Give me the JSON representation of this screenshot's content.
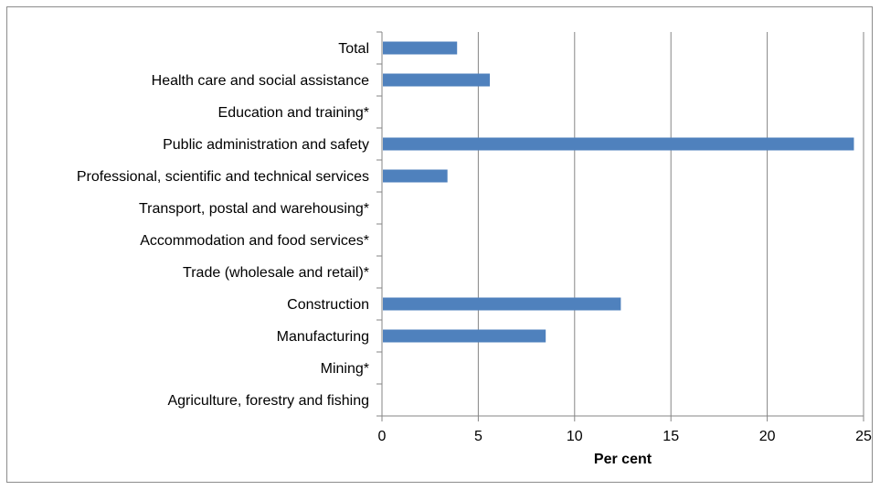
{
  "chart_data": {
    "type": "bar",
    "orientation": "horizontal",
    "title": "",
    "xlabel": "Per cent",
    "ylabel": "",
    "xlim": [
      0,
      25
    ],
    "xticks": [
      "0",
      "5",
      "10",
      "15",
      "20",
      "25"
    ],
    "grid": true,
    "legend": "none",
    "categories": [
      "Total",
      "Health care and social assistance",
      "Education and training*",
      "Public administration and safety",
      "Professional, scientific and technical services",
      "Transport, postal and warehousing*",
      "Accommodation and food services*",
      "Trade (wholesale and retail)*",
      "Construction",
      "Manufacturing",
      "Mining*",
      "Agriculture, forestry and fishing"
    ],
    "values": [
      3.9,
      5.6,
      0,
      24.5,
      3.4,
      0,
      0,
      0,
      12.4,
      8.5,
      0,
      0
    ],
    "colors": {
      "bar": "#4f81bd",
      "grid": "#868686",
      "axis": "#868686"
    }
  }
}
